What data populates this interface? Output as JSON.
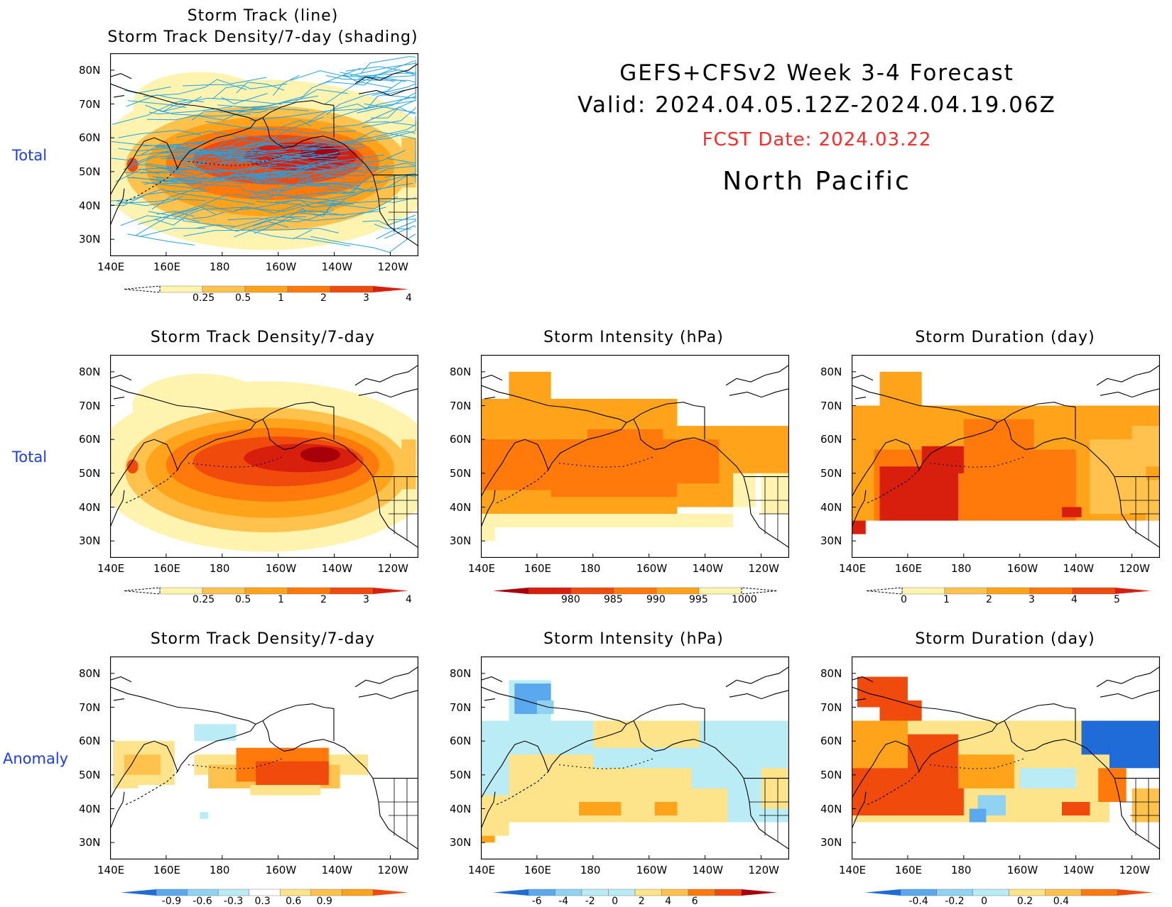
{
  "header": {
    "line1": "GEFS+CFSv2  Week  3-4  Forecast",
    "line2": "Valid:  2024.04.05.12Z-2024.04.19.06Z",
    "fcst": "FCST Date: 2024.03.22",
    "region": "North  Pacific"
  },
  "colors": {
    "fcst_date": "#ff2a2a",
    "row_label": "#1a3cff",
    "track_lines": "#1fa3e6"
  },
  "axes": {
    "lon_labels": [
      "140E",
      "160E",
      "180",
      "160W",
      "140W",
      "120W"
    ],
    "lat_labels": [
      "80N",
      "70N",
      "60N",
      "50N",
      "40N",
      "30N"
    ]
  },
  "rows": {
    "r1": "Total",
    "r2": "Total",
    "r3": "Anomaly"
  },
  "panels": {
    "top": {
      "title1": "Storm Track (line)",
      "title2": "Storm Track Density/7-day (shading)",
      "colorbar": [
        "0.25",
        "0.5",
        "1",
        "2",
        "3",
        "4"
      ]
    },
    "density_total": {
      "title": "Storm Track Density/7-day",
      "colorbar": [
        "0.25",
        "0.5",
        "1",
        "2",
        "3",
        "4"
      ]
    },
    "intensity_total": {
      "title": "Storm Intensity (hPa)",
      "colorbar": [
        "980",
        "985",
        "990",
        "995",
        "1000"
      ]
    },
    "duration_total": {
      "title": "Storm Duration (day)",
      "colorbar": [
        "0",
        "1",
        "2",
        "3",
        "4",
        "5"
      ]
    },
    "density_anom": {
      "title": "Storm Track Density/7-day",
      "colorbar": [
        "-0.9",
        "-0.6",
        "-0.3",
        "0.3",
        "0.6",
        "0.9"
      ]
    },
    "intensity_anom": {
      "title": "Storm Intensity (hPa)",
      "colorbar": [
        "-6",
        "-4",
        "-2",
        "0",
        "2",
        "4",
        "6"
      ]
    },
    "duration_anom": {
      "title": "Storm Duration (day)",
      "colorbar": [
        "-0.4",
        "-0.2",
        "0",
        "0.2",
        "0.4"
      ]
    }
  }
}
